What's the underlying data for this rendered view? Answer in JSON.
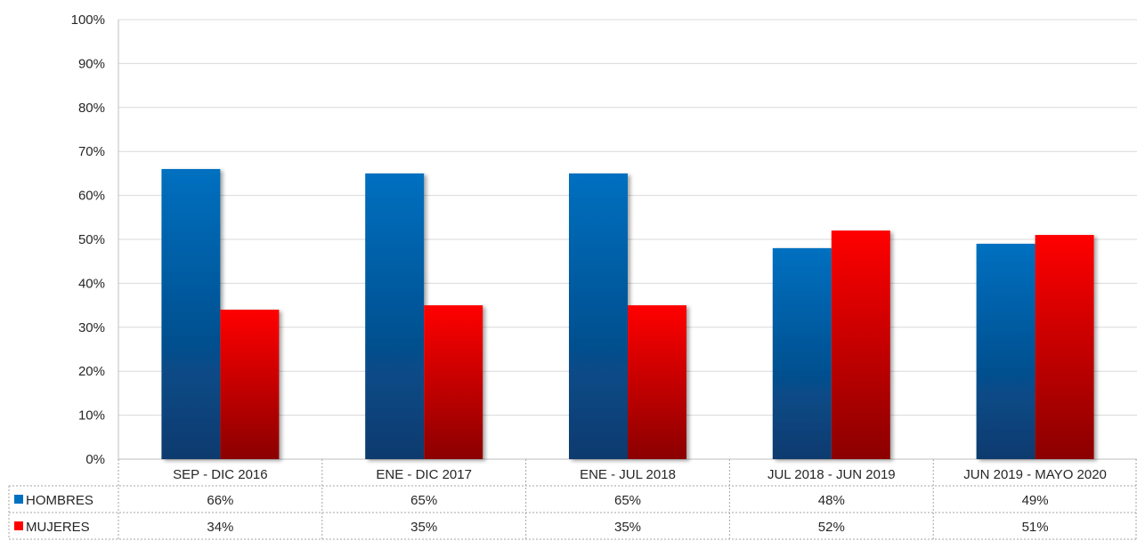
{
  "chart_data": {
    "type": "bar",
    "categories": [
      "SEP - DIC 2016",
      "ENE - DIC 2017",
      "ENE - JUL 2018",
      "JUL 2018 - JUN 2019",
      "JUN 2019 - MAYO 2020"
    ],
    "series": [
      {
        "name": "HOMBRES",
        "values": [
          66,
          65,
          65,
          48,
          49
        ],
        "labels": [
          "66%",
          "65%",
          "65%",
          "48%",
          "49%"
        ],
        "color": "#0070C0",
        "color_dark": "#0A3A6E"
      },
      {
        "name": "MUJERES",
        "values": [
          34,
          35,
          35,
          52,
          51
        ],
        "labels": [
          "34%",
          "35%",
          "35%",
          "52%",
          "51%"
        ],
        "color": "#FF0000",
        "color_dark": "#8B0000"
      }
    ],
    "y_ticks": [
      "0%",
      "10%",
      "20%",
      "30%",
      "40%",
      "50%",
      "60%",
      "70%",
      "80%",
      "90%",
      "100%"
    ],
    "ylim": [
      0,
      100
    ],
    "grid": true,
    "legend": "data-table"
  }
}
